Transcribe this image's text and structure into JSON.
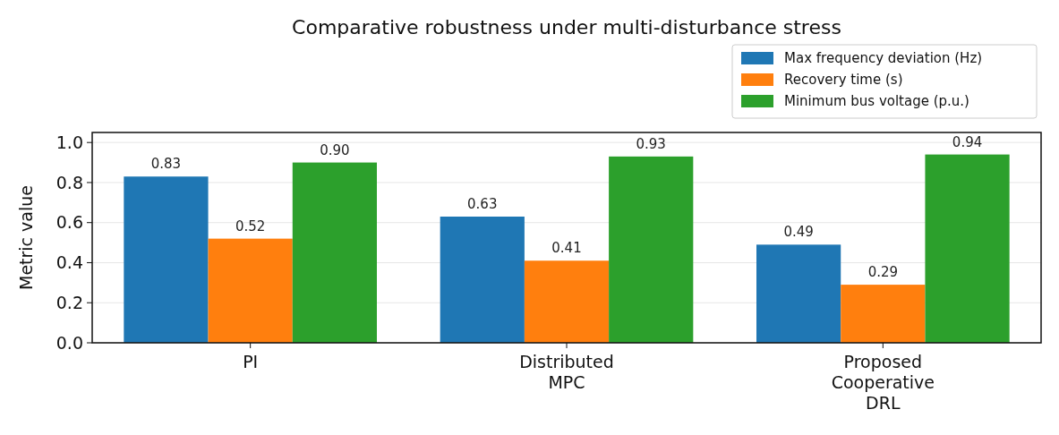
{
  "chart_data": {
    "type": "bar",
    "title": "Comparative robustness under multi-disturbance stress",
    "ylabel": "Metric value",
    "categories": [
      "PI",
      "Distributed\nMPC",
      "Proposed\nCooperative\nDRL"
    ],
    "series": [
      {
        "name": "Max frequency deviation (Hz)",
        "color": "#1f77b4",
        "values": [
          0.83,
          0.63,
          0.49
        ],
        "value_labels": [
          "0.83",
          "0.63",
          "0.49"
        ]
      },
      {
        "name": "Recovery time (s)",
        "color": "#ff7f0e",
        "values": [
          0.52,
          0.41,
          0.29
        ],
        "value_labels": [
          "0.52",
          "0.41",
          "0.29"
        ]
      },
      {
        "name": "Minimum bus voltage (p.u.)",
        "color": "#2ca02c",
        "values": [
          0.9,
          0.93,
          0.94
        ],
        "value_labels": [
          "0.90",
          "0.93",
          "0.94"
        ]
      }
    ],
    "ylim": [
      0,
      1.05
    ],
    "yticks": [
      {
        "value": 0,
        "label": "0.0"
      },
      {
        "value": 0.2,
        "label": "0.2"
      },
      {
        "value": 0.4,
        "label": "0.4"
      },
      {
        "value": 0.6,
        "label": "0.6"
      },
      {
        "value": 0.8,
        "label": "0.8"
      },
      {
        "value": 1,
        "label": "1.0"
      }
    ],
    "grid": "y",
    "legend": "top right"
  }
}
